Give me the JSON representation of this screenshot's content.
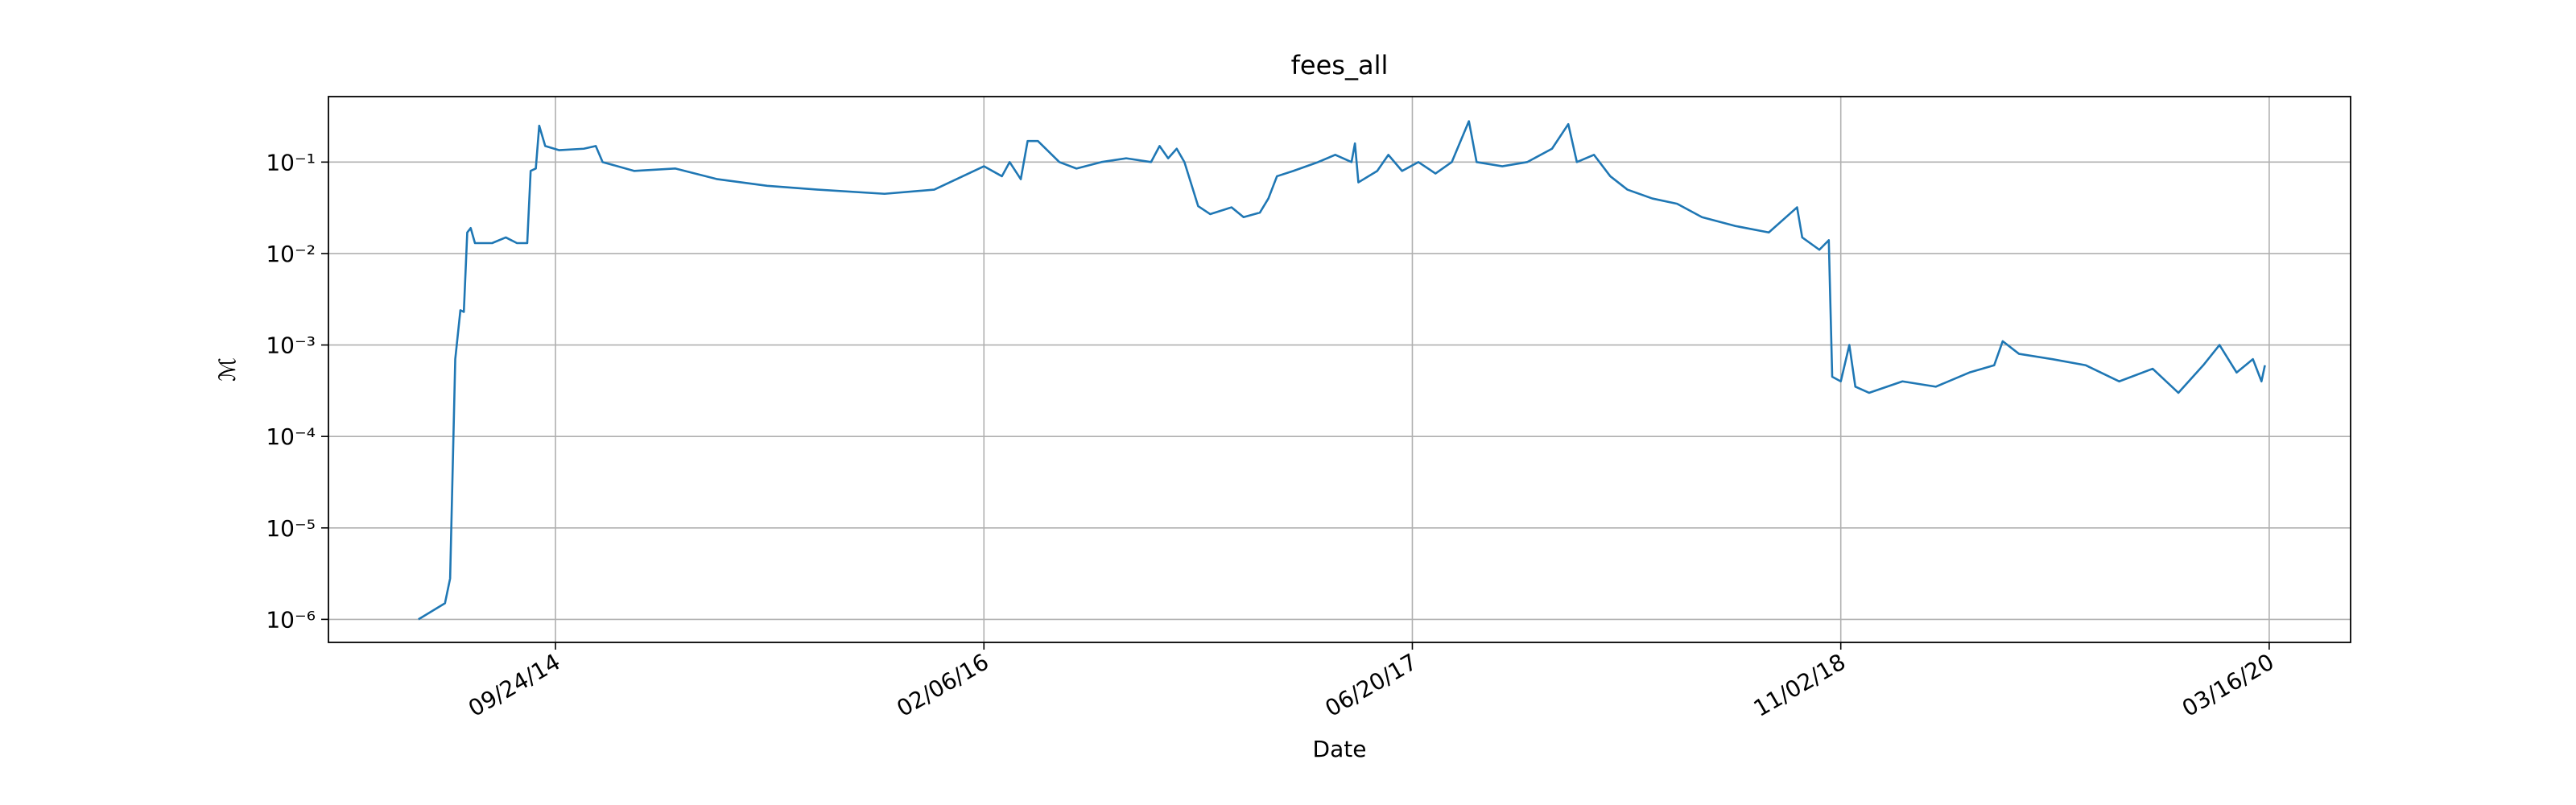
{
  "chart_data": {
    "type": "line",
    "title": "fees_all",
    "xlabel": "Date",
    "ylabel": "ℳ",
    "log_y": true,
    "grid": true,
    "xlim": [
      "01/02/14",
      "06/19/20"
    ],
    "xticks": [
      "09/24/14",
      "02/06/16",
      "06/20/17",
      "11/02/18",
      "03/16/20"
    ],
    "ylim": [
      5.6e-07,
      0.52
    ],
    "yticks": [
      {
        "value": 1e-06,
        "label": "10⁻⁶"
      },
      {
        "value": 1e-05,
        "label": "10⁻⁵"
      },
      {
        "value": 0.0001,
        "label": "10⁻⁴"
      },
      {
        "value": 0.001,
        "label": "10⁻³"
      },
      {
        "value": 0.01,
        "label": "10⁻²"
      },
      {
        "value": 0.1,
        "label": "10⁻¹"
      }
    ],
    "x": [
      "04/17/14",
      "05/18/14",
      "05/24/14",
      "05/30/14",
      "06/05/14",
      "06/09/14",
      "06/13/14",
      "06/17/14",
      "06/22/14",
      "07/12/14",
      "07/28/14",
      "08/10/14",
      "08/22/14",
      "08/26/14",
      "09/01/14",
      "09/05/14",
      "09/12/14",
      "09/28/14",
      "10/27/14",
      "11/10/14",
      "11/18/14",
      "12/25/14",
      "02/11/15",
      "04/01/15",
      "05/29/15",
      "07/27/15",
      "10/13/15",
      "12/10/15",
      "02/06/16",
      "02/27/16",
      "03/07/16",
      "03/20/16",
      "03/28/16",
      "04/09/16",
      "05/04/16",
      "05/24/16",
      "06/22/16",
      "07/21/16",
      "08/19/16",
      "08/29/16",
      "09/08/16",
      "09/18/16",
      "09/27/16",
      "10/07/16",
      "10/13/16",
      "10/27/16",
      "11/21/16",
      "12/05/16",
      "12/24/16",
      "01/03/17",
      "01/13/17",
      "02/01/17",
      "03/02/17",
      "03/22/17",
      "04/10/17",
      "04/14/17",
      "04/18/17",
      "05/10/17",
      "05/23/17",
      "06/08/17",
      "06/27/17",
      "07/17/17",
      "08/05/17",
      "08/25/17",
      "09/03/17",
      "10/03/17",
      "11/01/17",
      "11/30/17",
      "12/19/17",
      "12/29/17",
      "01/18/18",
      "02/06/18",
      "02/26/18",
      "03/27/18",
      "04/25/18",
      "05/24/18",
      "07/02/18",
      "08/10/18",
      "09/12/18",
      "09/18/18",
      "10/08/18",
      "10/19/18",
      "10/23/18",
      "11/02/18",
      "11/12/18",
      "11/19/18",
      "12/05/18",
      "01/13/19",
      "02/21/19",
      "04/01/19",
      "04/30/19",
      "05/10/19",
      "05/29/19",
      "07/07/19",
      "08/15/19",
      "09/23/19",
      "11/01/19",
      "12/01/19",
      "12/30/19",
      "01/18/20",
      "02/07/20",
      "02/26/20",
      "03/07/20",
      "03/11/20"
    ],
    "series": [
      {
        "name": "fees_all",
        "color": "#1f77b4",
        "values": [
          1e-06,
          1.5e-06,
          2.8e-06,
          0.0007,
          0.0024,
          0.0023,
          0.017,
          0.019,
          0.013,
          0.013,
          0.015,
          0.013,
          0.013,
          0.08,
          0.085,
          0.25,
          0.15,
          0.135,
          0.14,
          0.15,
          0.1,
          0.08,
          0.085,
          0.065,
          0.055,
          0.05,
          0.045,
          0.05,
          0.09,
          0.07,
          0.1,
          0.065,
          0.17,
          0.17,
          0.1,
          0.085,
          0.1,
          0.11,
          0.1,
          0.15,
          0.11,
          0.14,
          0.1,
          0.05,
          0.033,
          0.027,
          0.032,
          0.025,
          0.028,
          0.04,
          0.07,
          0.08,
          0.1,
          0.12,
          0.1,
          0.16,
          0.06,
          0.08,
          0.12,
          0.08,
          0.1,
          0.075,
          0.1,
          0.28,
          0.1,
          0.09,
          0.1,
          0.14,
          0.26,
          0.1,
          0.12,
          0.07,
          0.05,
          0.04,
          0.035,
          0.025,
          0.02,
          0.017,
          0.032,
          0.015,
          0.011,
          0.014,
          0.00045,
          0.0004,
          0.001,
          0.00035,
          0.0003,
          0.0004,
          0.00035,
          0.0005,
          0.0006,
          0.0011,
          0.0008,
          0.0007,
          0.0006,
          0.0004,
          0.00055,
          0.0003,
          0.0006,
          0.001,
          0.0005,
          0.0007,
          0.0004,
          0.0006
        ]
      }
    ]
  }
}
